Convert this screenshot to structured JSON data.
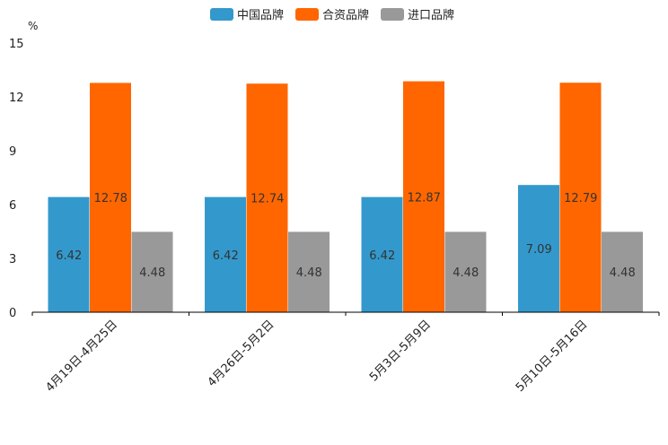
{
  "chart_data": {
    "type": "bar",
    "title": "",
    "ylabel": "%",
    "xlabel": "",
    "ylim": [
      0,
      15
    ],
    "yticks": [
      0,
      3,
      6,
      9,
      12,
      15
    ],
    "categories": [
      "4月19日-4月25日",
      "4月26日-5月2日",
      "5月3日-5月9日",
      "5月10日-5月16日"
    ],
    "series": [
      {
        "name": "中国品牌",
        "color": "#3399cc",
        "values": [
          6.42,
          6.42,
          6.42,
          7.09
        ]
      },
      {
        "name": "合资品牌",
        "color": "#ff6600",
        "values": [
          12.78,
          12.74,
          12.87,
          12.79
        ]
      },
      {
        "name": "进口品牌",
        "color": "#999999",
        "values": [
          4.48,
          4.48,
          4.48,
          4.48
        ]
      }
    ],
    "legend_position": "top-center",
    "grid": false
  }
}
